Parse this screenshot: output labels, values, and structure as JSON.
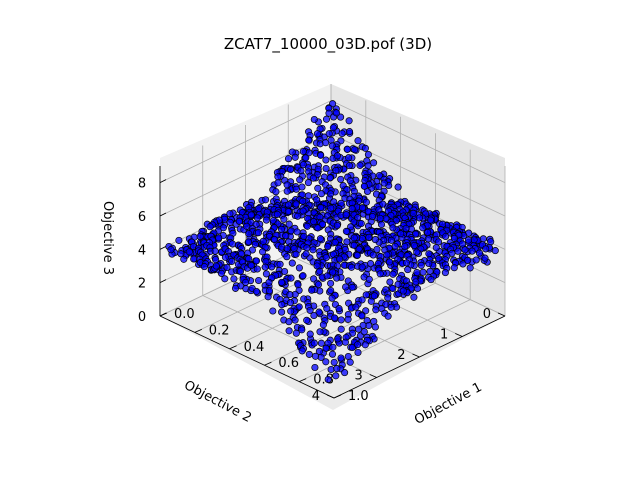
{
  "chart_data": {
    "type": "scatter",
    "projection": "3d",
    "title": "ZCAT7_10000_03D.pof (3D)",
    "xlabel": "Objective 1",
    "ylabel": "Objective 2",
    "zlabel": "Objective 3",
    "xlim": [
      0,
      1
    ],
    "ylim": [
      0,
      4
    ],
    "zlim": [
      0,
      9
    ],
    "x_ticks": [
      "0.0",
      "0.2",
      "0.4",
      "0.6",
      "0.8",
      "1.0"
    ],
    "y_ticks": [
      "0",
      "1",
      "2",
      "3",
      "4"
    ],
    "z_ticks": [
      "0",
      "2",
      "4",
      "6",
      "8"
    ],
    "grid": true,
    "marker_color": "#0000ff",
    "marker_edge_color": "#000000",
    "n_points": 10000
  }
}
